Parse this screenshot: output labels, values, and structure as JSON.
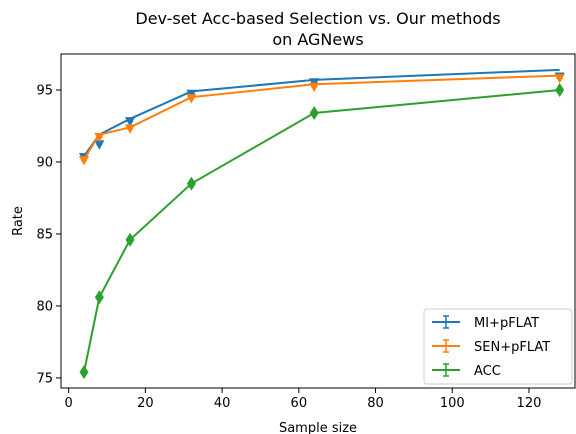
{
  "chart_data": {
    "type": "line",
    "title": "Dev-set Acc-based Selection vs. Our methods",
    "subtitle": "on AGNews",
    "xlabel": "Sample size",
    "ylabel": "Rate",
    "xlim": [
      -2,
      132
    ],
    "ylim": [
      74.3,
      97.5
    ],
    "xticks": [
      0,
      20,
      40,
      60,
      80,
      100,
      120
    ],
    "yticks": [
      75,
      80,
      85,
      90,
      95
    ],
    "x": [
      4,
      8,
      16,
      32,
      64,
      128
    ],
    "grid": false,
    "legend_position": "lower right",
    "series": [
      {
        "name": "MI+pFLAT",
        "color": "#1f77b4",
        "marker": "v",
        "values": [
          90.4,
          91.9,
          93.0,
          94.9,
          95.7,
          96.4
        ],
        "marker_values": [
          90.3,
          91.2,
          92.8,
          94.7,
          95.5,
          95.9
        ]
      },
      {
        "name": "SEN+pFLAT",
        "color": "#ff7f0e",
        "marker": "v",
        "values": [
          90.2,
          91.9,
          92.4,
          94.5,
          95.4,
          96.0
        ],
        "marker_values": [
          90.1,
          91.7,
          92.3,
          94.4,
          95.2,
          95.8
        ]
      },
      {
        "name": "ACC",
        "color": "#2ca02c",
        "marker": "d",
        "values": [
          75.4,
          80.6,
          84.6,
          88.5,
          93.4,
          95.0
        ],
        "marker_values": [
          75.4,
          80.6,
          84.6,
          88.5,
          93.4,
          95.0
        ]
      }
    ]
  }
}
